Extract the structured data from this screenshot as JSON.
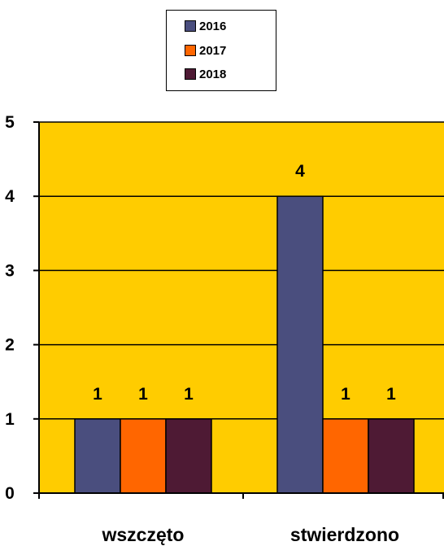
{
  "chart_data": {
    "type": "bar",
    "categories": [
      "wszczęto",
      "stwierdzono"
    ],
    "series": [
      {
        "name": "2016",
        "color": "#4A4E7E",
        "values": [
          1,
          4
        ]
      },
      {
        "name": "2017",
        "color": "#FF6600",
        "values": [
          1,
          1
        ]
      },
      {
        "name": "2018",
        "color": "#4E1A34",
        "values": [
          1,
          1
        ]
      }
    ],
    "data_labels": [
      [
        "1",
        "4"
      ],
      [
        "1",
        "1"
      ],
      [
        "1",
        "1"
      ]
    ],
    "y_ticks": [
      "0",
      "1",
      "2",
      "3",
      "4",
      "5"
    ],
    "ylim": [
      0,
      5
    ],
    "grid": true,
    "plot_background": "#FFCC00",
    "legend_position": "top-center",
    "title": "",
    "xlabel": "",
    "ylabel": ""
  }
}
